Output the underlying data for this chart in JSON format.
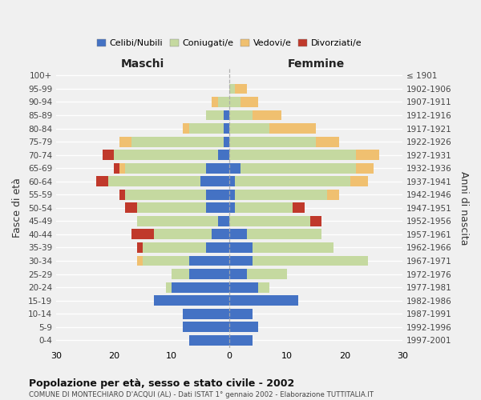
{
  "age_groups": [
    "0-4",
    "5-9",
    "10-14",
    "15-19",
    "20-24",
    "25-29",
    "30-34",
    "35-39",
    "40-44",
    "45-49",
    "50-54",
    "55-59",
    "60-64",
    "65-69",
    "70-74",
    "75-79",
    "80-84",
    "85-89",
    "90-94",
    "95-99",
    "100+"
  ],
  "birth_years": [
    "1997-2001",
    "1992-1996",
    "1987-1991",
    "1982-1986",
    "1977-1981",
    "1972-1976",
    "1967-1971",
    "1962-1966",
    "1957-1961",
    "1952-1956",
    "1947-1951",
    "1942-1946",
    "1937-1941",
    "1932-1936",
    "1927-1931",
    "1922-1926",
    "1917-1921",
    "1912-1916",
    "1907-1911",
    "1902-1906",
    "≤ 1901"
  ],
  "maschi": {
    "celibi": [
      7,
      8,
      8,
      13,
      10,
      7,
      7,
      4,
      3,
      2,
      4,
      4,
      5,
      4,
      2,
      1,
      1,
      1,
      0,
      0,
      0
    ],
    "coniugati": [
      0,
      0,
      0,
      0,
      1,
      3,
      8,
      11,
      10,
      14,
      12,
      14,
      16,
      14,
      18,
      16,
      6,
      3,
      2,
      0,
      0
    ],
    "vedovi": [
      0,
      0,
      0,
      0,
      0,
      0,
      1,
      0,
      0,
      0,
      0,
      0,
      0,
      1,
      0,
      2,
      1,
      0,
      1,
      0,
      0
    ],
    "divorziati": [
      0,
      0,
      0,
      0,
      0,
      0,
      0,
      1,
      4,
      0,
      2,
      1,
      2,
      1,
      2,
      0,
      0,
      0,
      0,
      0,
      0
    ]
  },
  "femmine": {
    "nubili": [
      4,
      5,
      4,
      12,
      5,
      3,
      4,
      4,
      3,
      0,
      1,
      1,
      1,
      2,
      0,
      0,
      0,
      0,
      0,
      0,
      0
    ],
    "coniugate": [
      0,
      0,
      0,
      0,
      2,
      7,
      20,
      14,
      13,
      14,
      10,
      16,
      20,
      20,
      22,
      15,
      7,
      4,
      2,
      1,
      0
    ],
    "vedove": [
      0,
      0,
      0,
      0,
      0,
      0,
      0,
      0,
      0,
      0,
      0,
      2,
      3,
      3,
      4,
      4,
      8,
      5,
      3,
      2,
      0
    ],
    "divorziate": [
      0,
      0,
      0,
      0,
      0,
      0,
      0,
      0,
      0,
      2,
      2,
      0,
      0,
      0,
      0,
      0,
      0,
      0,
      0,
      0,
      0
    ]
  },
  "colors": {
    "celibi_nubili": "#4472c4",
    "coniugati": "#c5d9a0",
    "vedovi": "#f0c070",
    "divorziati": "#c0392b"
  },
  "title": "Popolazione per età, sesso e stato civile - 2002",
  "subtitle": "COMUNE DI MONTECHIARO D'ACQUI (AL) - Dati ISTAT 1° gennaio 2002 - Elaborazione TUTTITALIA.IT",
  "xlabel_left": "Maschi",
  "xlabel_right": "Femmine",
  "ylabel_left": "Fasce di età",
  "ylabel_right": "Anni di nascita",
  "xlim": 30,
  "legend_labels": [
    "Celibi/Nubili",
    "Coniugati/e",
    "Vedovi/e",
    "Divorziati/e"
  ],
  "background_color": "#f0f0f0"
}
